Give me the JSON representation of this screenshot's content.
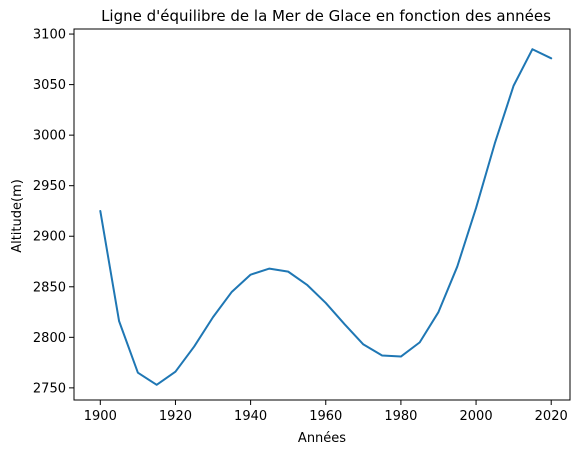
{
  "chart_data": {
    "type": "line",
    "title": "Ligne d'équilibre de la Mer de Glace en fonction des années",
    "xlabel": "Années",
    "ylabel": "Altitude(m)",
    "xlim": [
      1893,
      2025
    ],
    "ylim": [
      2738,
      3105
    ],
    "xticks": [
      1900,
      1920,
      1940,
      1960,
      1980,
      2000,
      2020
    ],
    "yticks": [
      2750,
      2800,
      2850,
      2900,
      2950,
      3000,
      3050,
      3100
    ],
    "grid": false,
    "line_color": "#1f77b4",
    "series": [
      {
        "x": [
          1900,
          1905,
          1910,
          1915,
          1920,
          1925,
          1930,
          1935,
          1940,
          1945,
          1950,
          1955,
          1960,
          1965,
          1970,
          1975,
          1980,
          1985,
          1990,
          1995,
          2000,
          2005,
          2010,
          2015,
          2020
        ],
        "values": [
          2925,
          2816,
          2765,
          2753,
          2766,
          2791,
          2820,
          2845,
          2862,
          2868,
          2865,
          2852,
          2834,
          2813,
          2793,
          2782,
          2781,
          2795,
          2825,
          2870,
          2928,
          2992,
          3049,
          3085,
          3076
        ]
      }
    ]
  }
}
